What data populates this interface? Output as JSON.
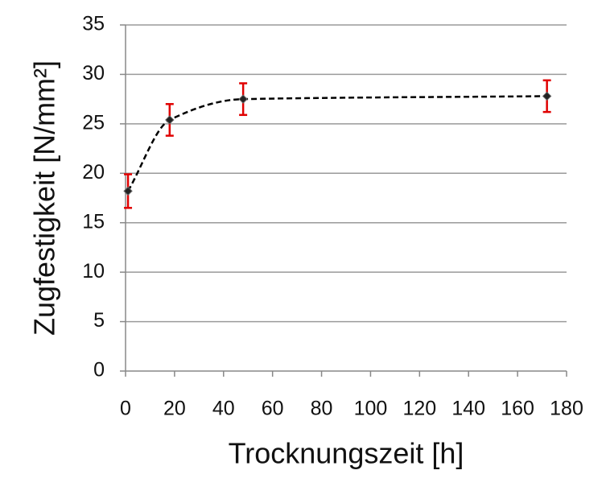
{
  "chart_data": {
    "type": "scatter",
    "x_label": "Trocknungszeit  [h]",
    "y_label": "Zugfestigkeit  [N/mm²]",
    "series": [
      {
        "x": [
          1,
          18,
          48,
          172
        ],
        "values": [
          18.2,
          25.4,
          27.5,
          27.8
        ],
        "errors": [
          1.7,
          1.6,
          1.6,
          1.6
        ],
        "color": "#222222",
        "error_color": "#e00000"
      }
    ],
    "line": "dashed",
    "xlim": [
      0,
      180
    ],
    "xticks": [
      0,
      20,
      40,
      60,
      80,
      100,
      120,
      140,
      160,
      180
    ],
    "ylim": [
      0,
      35
    ],
    "yticks": [
      0,
      5,
      10,
      15,
      20,
      25,
      30,
      35
    ],
    "grid": true
  }
}
